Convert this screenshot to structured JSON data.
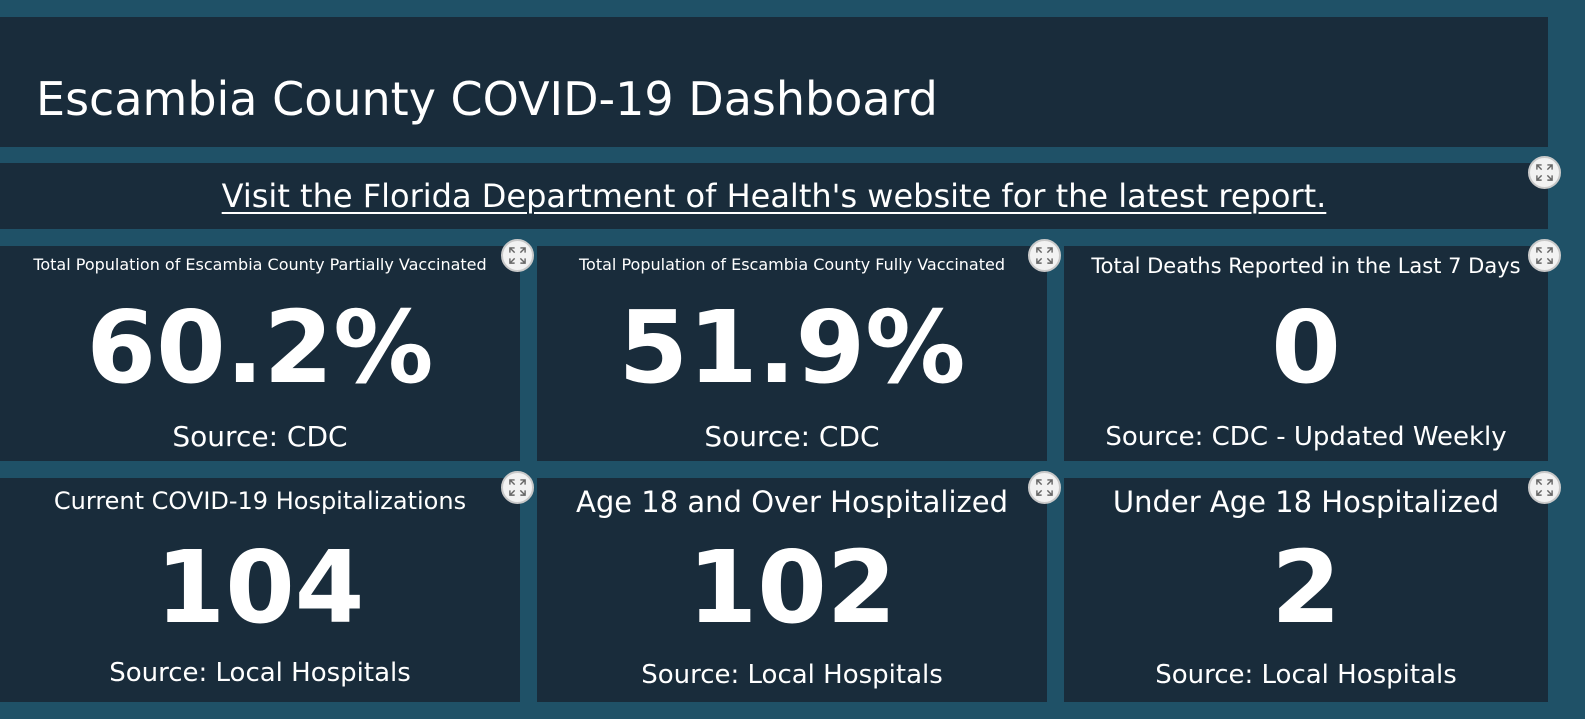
{
  "header": {
    "title": "Escambia County COVID-19 Dashboard"
  },
  "link": {
    "text": "Visit the Florida Department of Health's website for the latest report."
  },
  "tiles": [
    {
      "label": "Total Population of Escambia County Partially Vaccinated",
      "value": "60.2%",
      "source": "Source: CDC"
    },
    {
      "label": "Total Population of Escambia County Fully Vaccinated",
      "value": "51.9%",
      "source": "Source: CDC"
    },
    {
      "label": "Total Deaths Reported in the Last 7 Days",
      "value": "0",
      "source": "Source: CDC - Updated Weekly"
    },
    {
      "label": "Current COVID-19 Hospitalizations",
      "value": "104",
      "source": "Source: Local Hospitals"
    },
    {
      "label": "Age 18 and Over Hospitalized",
      "value": "102",
      "source": "Source: Local Hospitals"
    },
    {
      "label": "Under Age 18 Hospitalized",
      "value": "2",
      "source": "Source: Local Hospitals"
    }
  ],
  "icons": {
    "expand": "expand-icon"
  },
  "colors": {
    "background": "#1f5167",
    "panel": "#192c3b",
    "text": "#ffffff"
  }
}
